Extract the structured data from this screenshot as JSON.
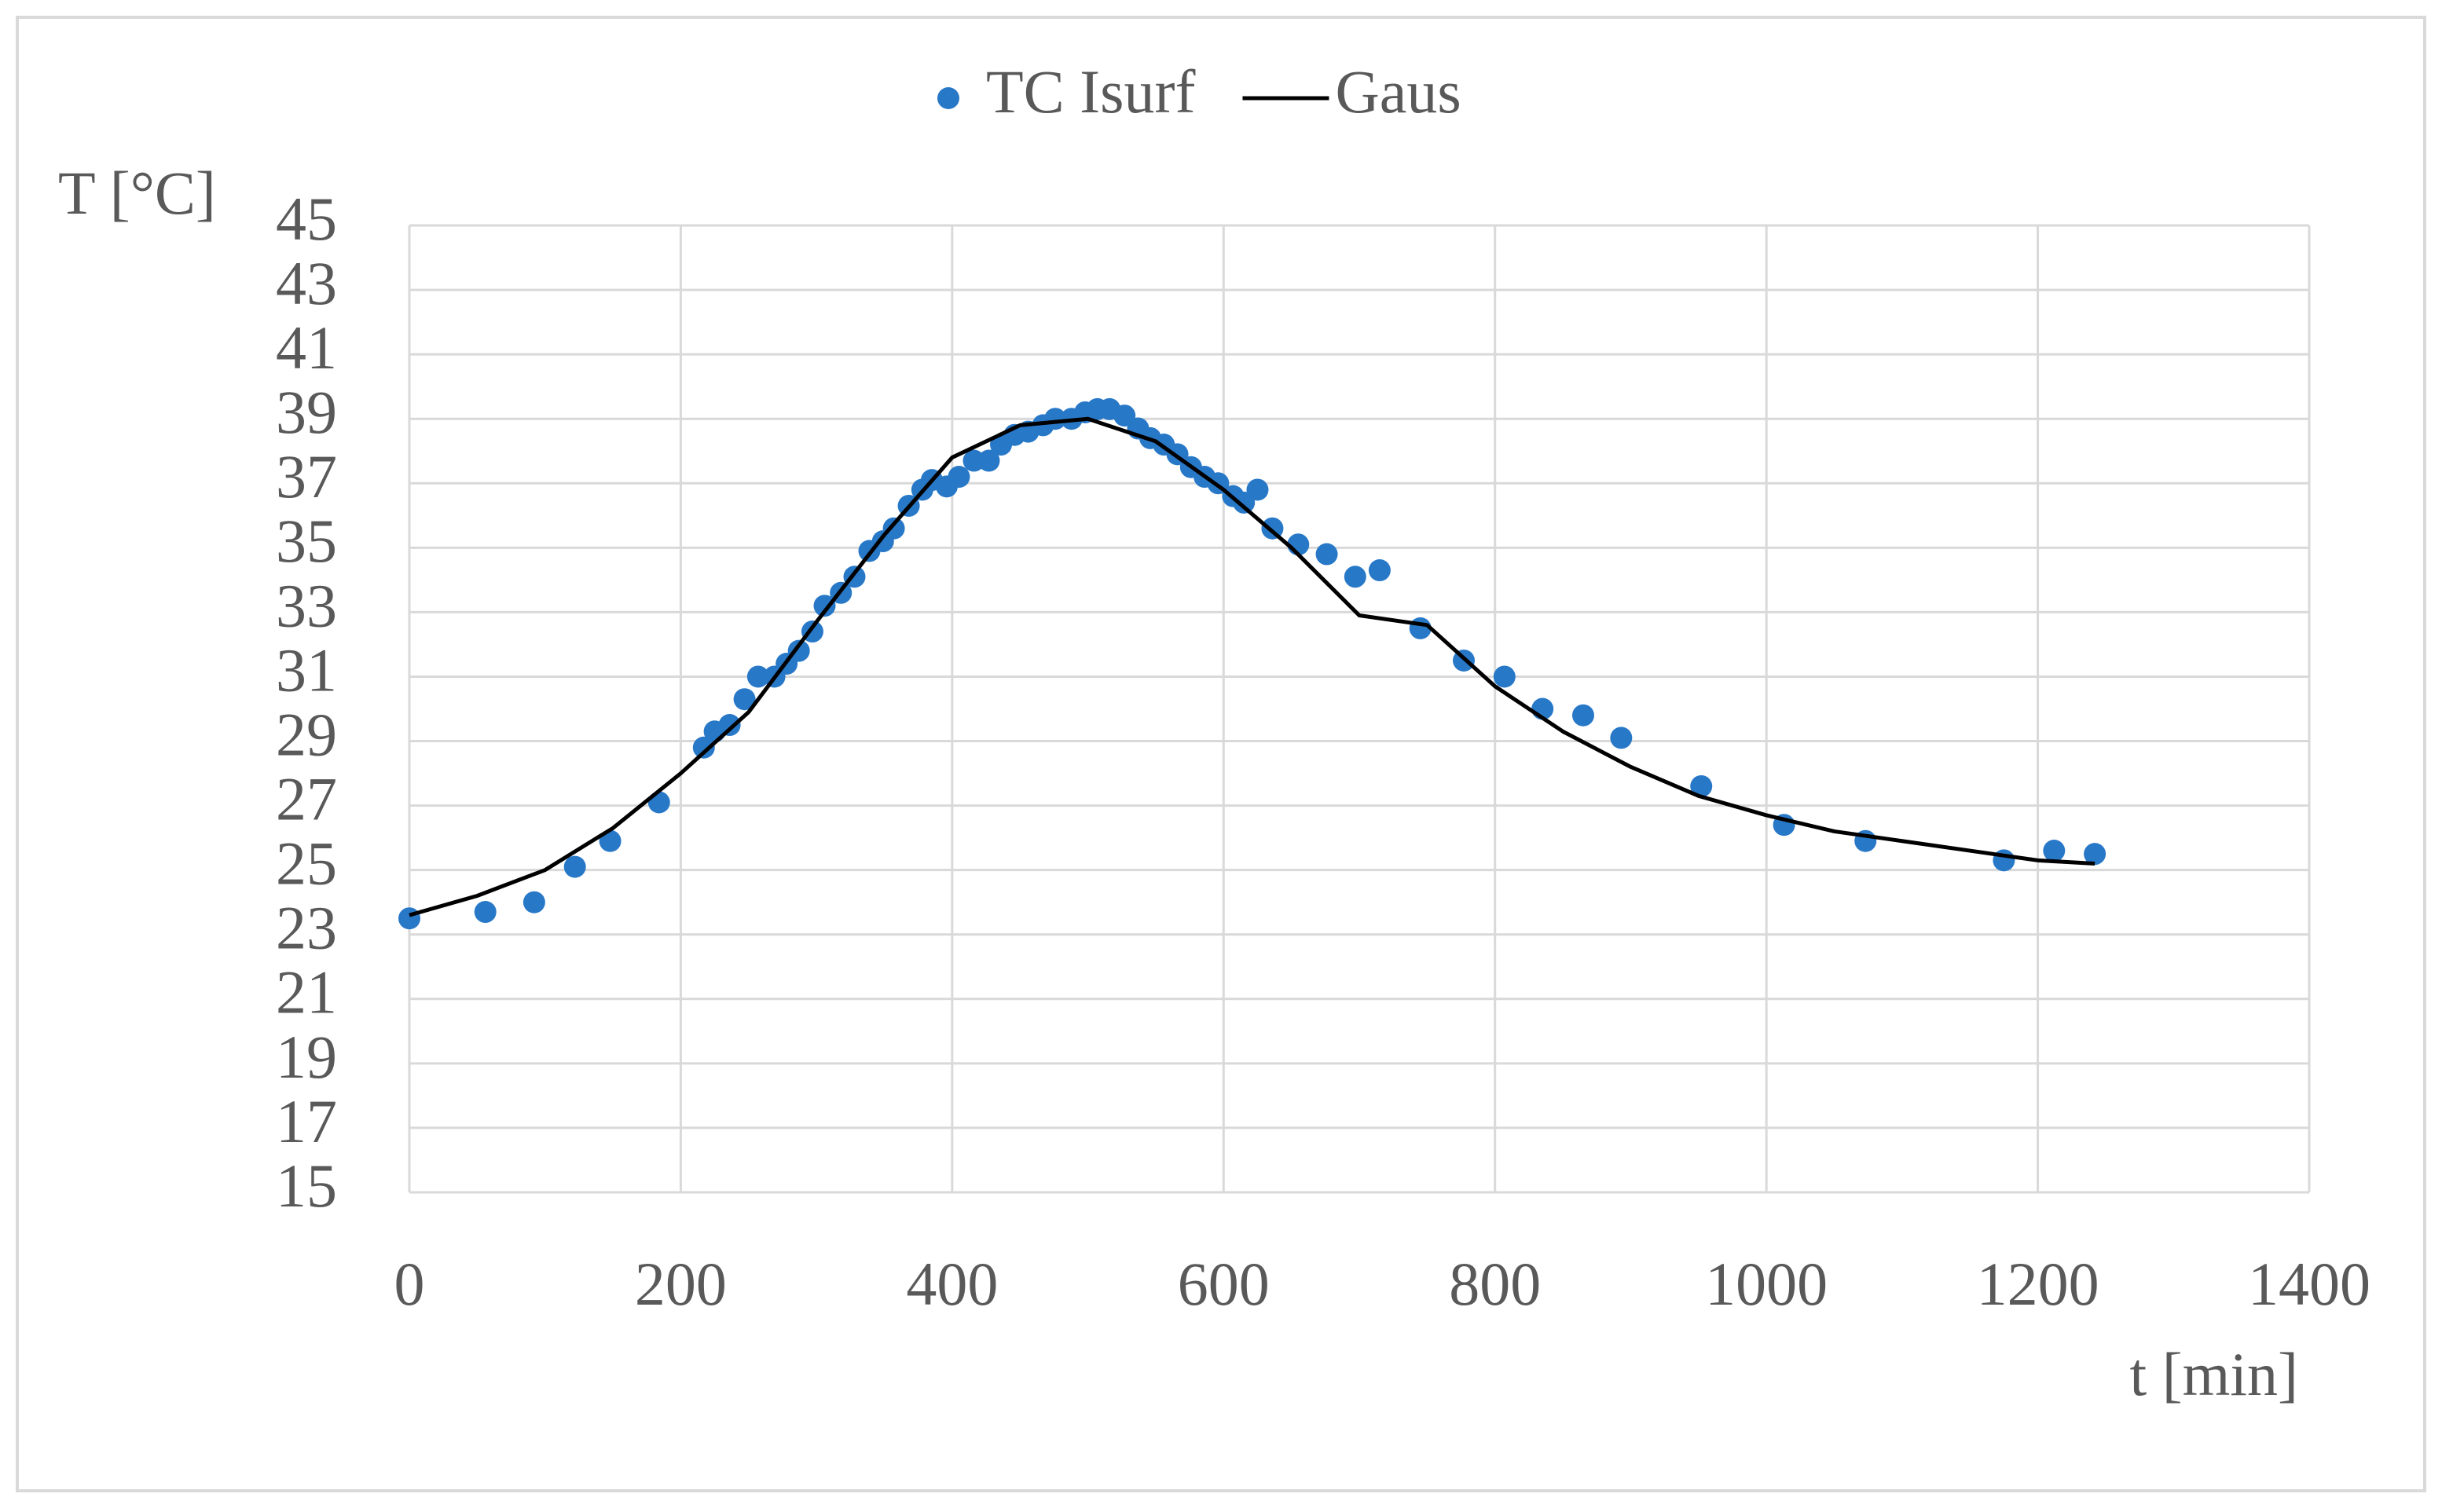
{
  "chart_data": {
    "type": "scatter",
    "xlabel": "t [min]",
    "ylabel": "T [°C]",
    "xlim": [
      0,
      1400
    ],
    "xticks": [
      0,
      200,
      400,
      600,
      800,
      1000,
      1200,
      1400
    ],
    "ylim": [
      15,
      45
    ],
    "yticks": [
      15,
      17,
      19,
      21,
      23,
      25,
      27,
      29,
      31,
      33,
      35,
      37,
      39,
      41,
      43,
      45
    ],
    "grid": true,
    "legend": "top",
    "series": [
      {
        "name": "TC Isurf",
        "type": "scatter",
        "color": "#2878c8",
        "x": [
          0,
          56,
          92,
          122,
          148,
          184,
          217,
          225,
          236,
          247,
          257,
          269,
          278,
          287,
          297,
          306,
          318,
          328,
          339,
          349,
          357,
          368,
          378,
          385,
          396,
          405,
          416,
          427,
          436,
          446,
          456,
          467,
          476,
          488,
          498,
          507,
          516,
          527,
          537,
          546,
          556,
          566,
          576,
          586,
          596,
          607,
          615,
          625,
          636,
          655,
          676,
          697,
          715,
          745,
          777,
          807,
          835,
          865,
          893,
          952,
          1013,
          1073,
          1175,
          1212,
          1242
        ],
        "values": [
          23.5,
          23.7,
          24.0,
          25.1,
          25.9,
          27.1,
          28.8,
          29.3,
          29.5,
          30.3,
          31.0,
          31.0,
          31.4,
          31.8,
          32.4,
          33.2,
          33.6,
          34.1,
          34.9,
          35.2,
          35.6,
          36.3,
          36.8,
          37.1,
          36.9,
          37.2,
          37.7,
          37.7,
          38.2,
          38.5,
          38.6,
          38.8,
          39.0,
          39.0,
          39.2,
          39.3,
          39.3,
          39.1,
          38.7,
          38.4,
          38.2,
          37.9,
          37.5,
          37.2,
          37.0,
          36.6,
          36.4,
          36.8,
          35.6,
          35.1,
          34.8,
          34.1,
          34.3,
          32.5,
          31.5,
          31.0,
          30.0,
          29.8,
          29.1,
          27.6,
          26.4,
          25.9,
          25.3,
          25.6,
          25.5
        ]
      },
      {
        "name": "Gaus",
        "type": "line",
        "color": "#000000",
        "x": [
          0,
          50,
          100,
          150,
          200,
          250,
          300,
          350,
          400,
          450,
          500,
          550,
          600,
          650,
          700,
          750,
          800,
          850,
          900,
          950,
          1000,
          1050,
          1100,
          1150,
          1200,
          1242
        ],
        "values": [
          23.6,
          24.2,
          25.0,
          26.3,
          28.0,
          29.9,
          32.7,
          35.4,
          37.8,
          38.8,
          39.0,
          38.3,
          36.8,
          35.0,
          32.9,
          32.6,
          30.7,
          29.3,
          28.2,
          27.3,
          26.7,
          26.2,
          25.9,
          25.6,
          25.3,
          25.2
        ]
      }
    ]
  }
}
